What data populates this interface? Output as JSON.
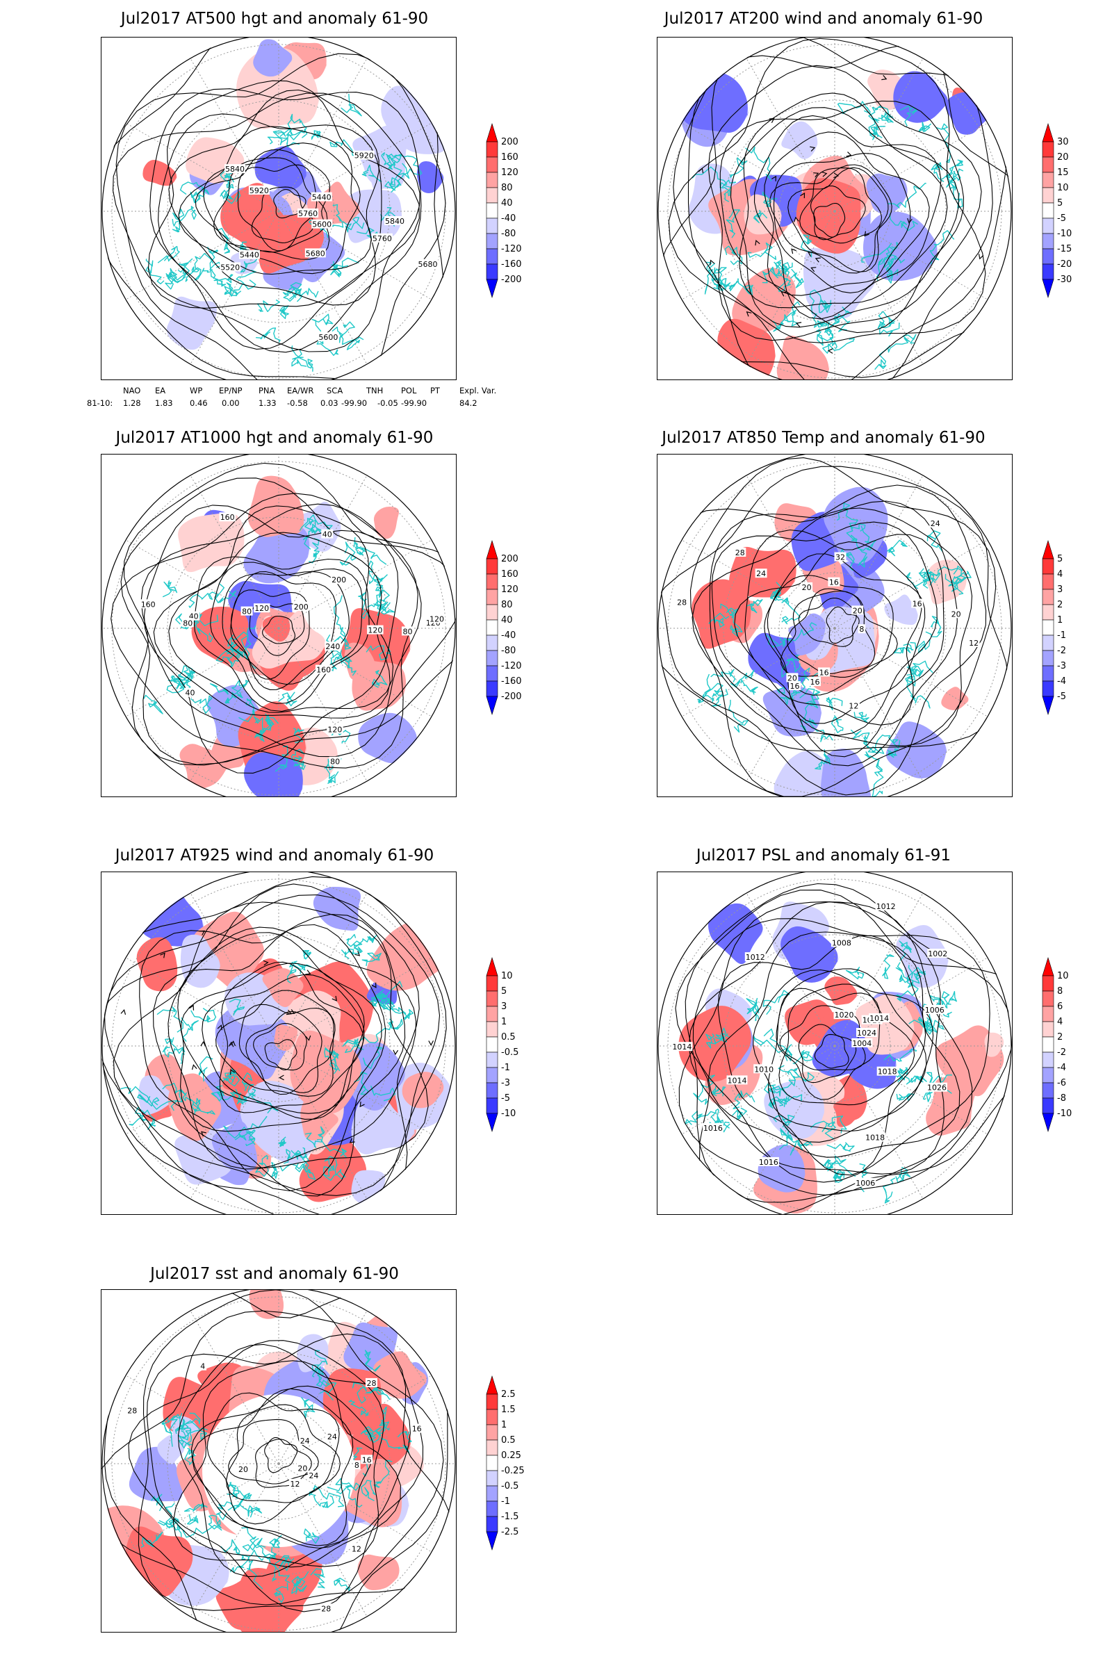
{
  "panels": [
    {
      "id": "at500",
      "title": "Jul2017 AT500 hgt and anomaly 61-90",
      "colorbar": [
        "200",
        "160",
        "120",
        "80",
        "40",
        "-40",
        "-80",
        "-120",
        "-160",
        "-200"
      ],
      "contour_labels": [
        "5840",
        "5760",
        "5680",
        "5920",
        "5440",
        "5600",
        "5520",
        "5440",
        "5600",
        "5680",
        "5760",
        "5840",
        "5920"
      ]
    },
    {
      "id": "at200",
      "title": "Jul2017 AT200 wind and anomaly 61-90",
      "colorbar": [
        "30",
        "20",
        "15",
        "10",
        "5",
        "-5",
        "-10",
        "-15",
        "-20",
        "-30"
      ],
      "contour_labels": []
    },
    {
      "id": "at1000",
      "title": "Jul2017 AT1000 hgt and anomaly 61-90",
      "colorbar": [
        "200",
        "160",
        "120",
        "80",
        "40",
        "-40",
        "-80",
        "-120",
        "-160",
        "-200"
      ],
      "contour_labels": [
        "120",
        "160",
        "160",
        "200",
        "120",
        "120",
        "40",
        "80",
        "40",
        "40",
        "80",
        "200",
        "240",
        "160",
        "120",
        "80",
        "80",
        "120"
      ]
    },
    {
      "id": "at850",
      "title": "Jul2017 AT850 Temp and anomaly 61-90",
      "colorbar": [
        "5",
        "4",
        "3",
        "2",
        "1",
        "-1",
        "-2",
        "-3",
        "-4",
        "-5"
      ],
      "contour_labels": [
        "16",
        "16",
        "16",
        "20",
        "12",
        "20",
        "24",
        "28",
        "8",
        "12",
        "16",
        "28",
        "32",
        "20",
        "24",
        "20",
        "16"
      ]
    },
    {
      "id": "at925",
      "title": "Jul2017 AT925 wind and anomaly 61-90",
      "colorbar": [
        "10",
        "5",
        "3",
        "1",
        "0.5",
        "-0.5",
        "-1",
        "-3",
        "-5",
        "-10"
      ],
      "contour_labels": []
    },
    {
      "id": "psl",
      "title": "Jul2017 PSL and anomaly 61-91",
      "colorbar": [
        "10",
        "8",
        "6",
        "4",
        "2",
        "-2",
        "-4",
        "-6",
        "-8",
        "-10"
      ],
      "contour_labels": [
        "1010",
        "1012",
        "1014",
        "1016",
        "1026",
        "1024",
        "1008",
        "1010",
        "1006",
        "1004",
        "1002",
        "1020",
        "1018",
        "1014",
        "1012",
        "1006",
        "1014",
        "1016",
        "1018"
      ]
    },
    {
      "id": "sst",
      "title": "Jul2017 sst and anomaly 61-90",
      "colorbar": [
        "2.5",
        "1.5",
        "1",
        "0.5",
        "0.25",
        "-0.25",
        "-0.5",
        "-1",
        "-1.5",
        "-2.5"
      ],
      "contour_labels": [
        "28",
        "24",
        "24",
        "20",
        "16",
        "12",
        "8",
        "4",
        "12",
        "16",
        "20",
        "28",
        "24",
        "28"
      ]
    }
  ],
  "teleconnection": {
    "headers": [
      "NAO",
      "EA",
      "WP",
      "EP/NP",
      "PNA",
      "EA/WR",
      "SCA",
      "TNH",
      "POL",
      "PT",
      "Expl. Var."
    ],
    "row_label": "81-10:",
    "values": [
      "1.28",
      "1.83",
      "0.46",
      "0.00",
      "1.33",
      "-0.58",
      "0.03",
      "-99.90",
      "-0.05",
      "-99.90",
      "84.2"
    ]
  },
  "colors": {
    "positive": [
      "#ff0000",
      "#ff3a3a",
      "#ff6e6e",
      "#ffa3a3",
      "#ffd2d2"
    ],
    "negative": [
      "#d2d2ff",
      "#a3a3ff",
      "#6e6eff",
      "#3a3aff",
      "#0000ff"
    ],
    "coast": "#20c8c8",
    "contour": "#000000"
  }
}
